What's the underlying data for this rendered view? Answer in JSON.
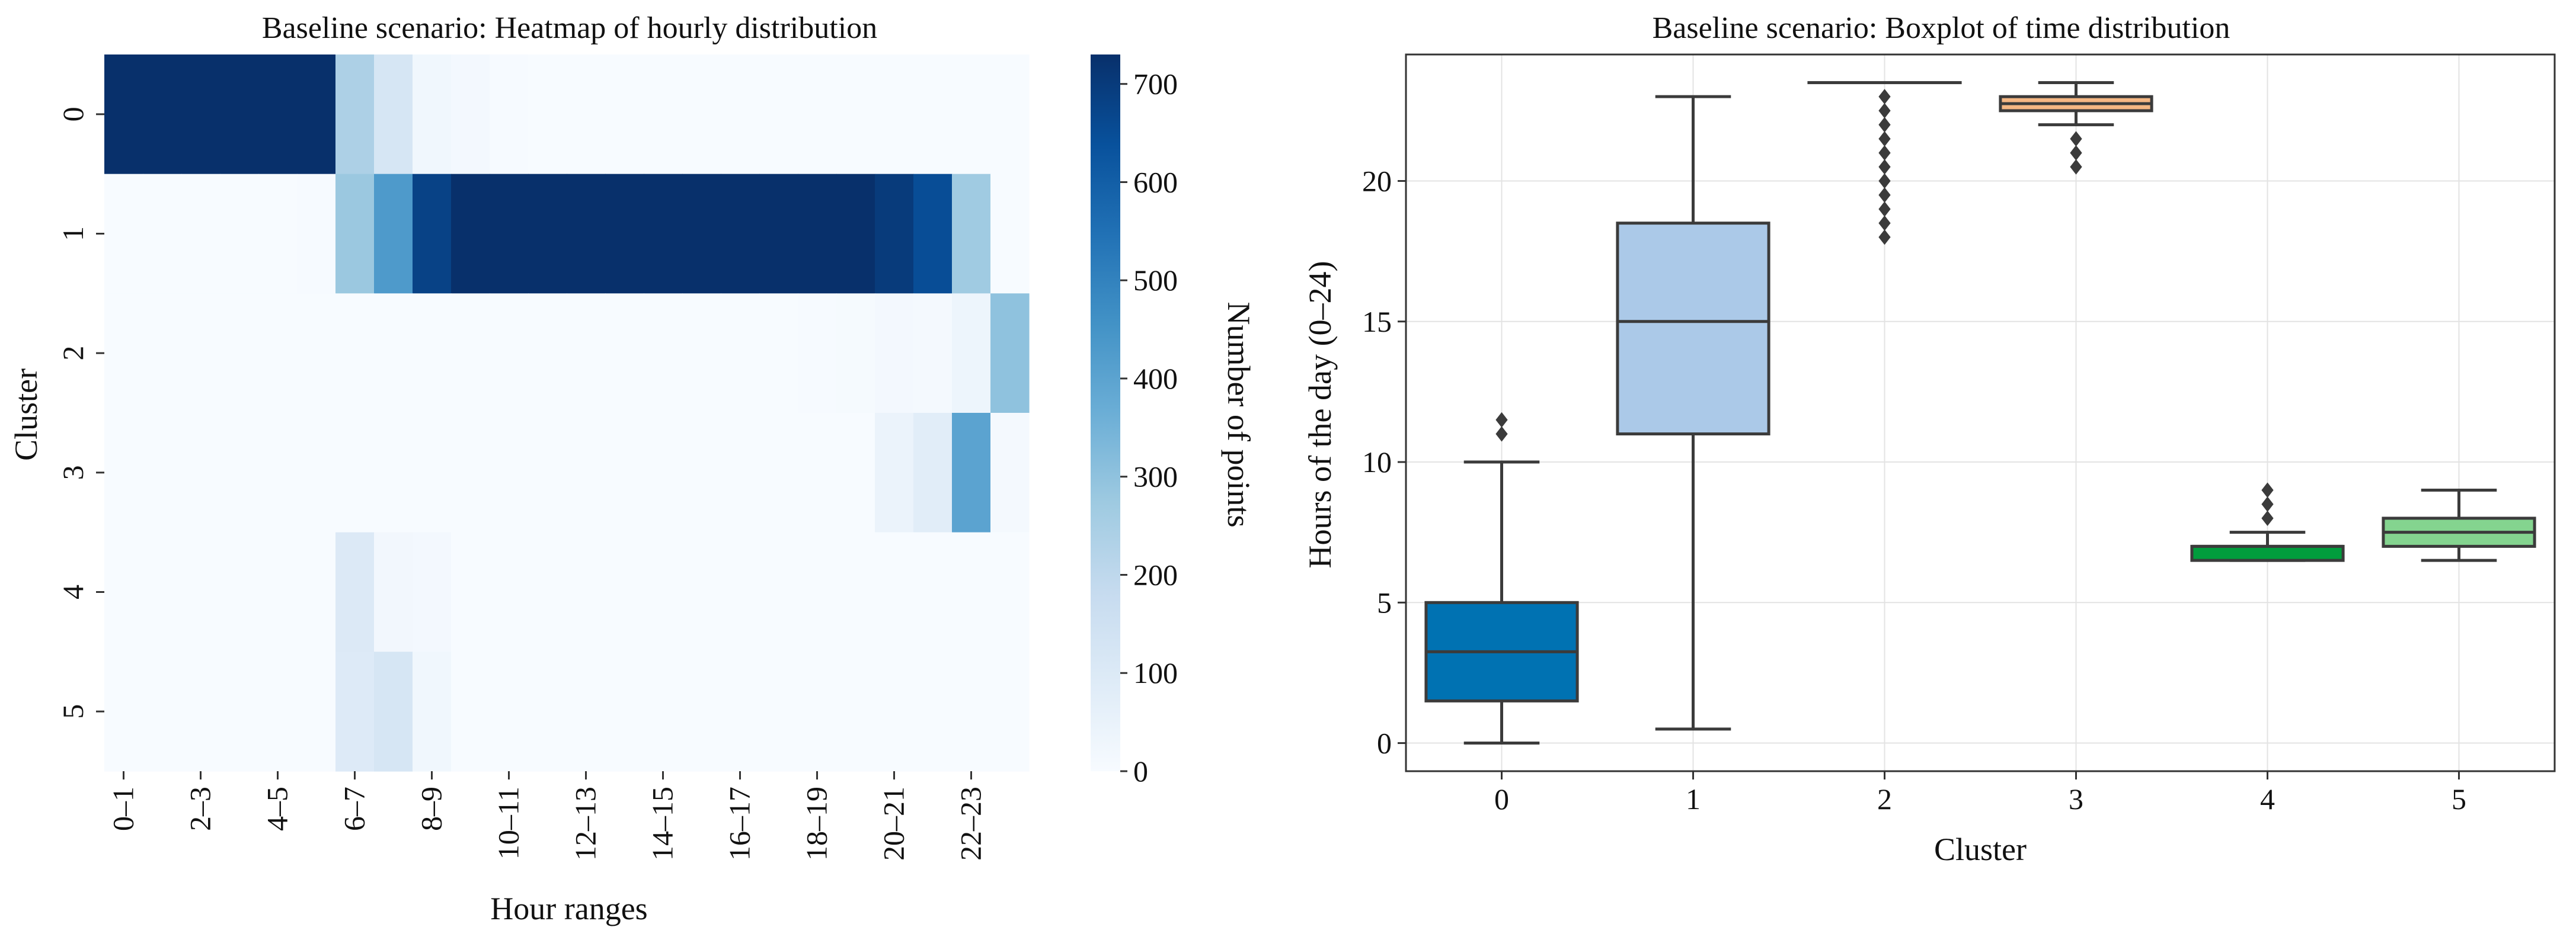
{
  "chart_data": [
    {
      "type": "heatmap",
      "title": "Baseline scenario: Heatmap of hourly distribution",
      "xlabel": "Hour ranges",
      "ylabel": "Cluster",
      "colorbar_label": "Number of points",
      "colorbar_range": [
        0,
        730
      ],
      "colorbar_ticks": [
        0,
        100,
        200,
        300,
        400,
        500,
        600,
        700
      ],
      "rows": [
        "0",
        "1",
        "2",
        "3",
        "4",
        "5"
      ],
      "columns": [
        "0–1",
        "1–2",
        "2–3",
        "3–4",
        "4–5",
        "5–6",
        "6–7",
        "7–8",
        "8–9",
        "9–10",
        "10–11",
        "11–12",
        "12–13",
        "13–14",
        "14–15",
        "15–16",
        "16–17",
        "17–18",
        "18–19",
        "19–20",
        "20–21",
        "21–22",
        "22–23",
        "23–24"
      ],
      "tick_labels": [
        "0–1",
        "2–3",
        "4–5",
        "6–7",
        "8–9",
        "10–11",
        "12–13",
        "14–15",
        "16–17",
        "18–19",
        "20–21",
        "22–23"
      ],
      "values": [
        [
          730,
          730,
          730,
          730,
          730,
          730,
          240,
          120,
          25,
          15,
          5,
          0,
          0,
          0,
          0,
          0,
          0,
          0,
          0,
          0,
          0,
          0,
          0,
          0
        ],
        [
          0,
          0,
          0,
          0,
          0,
          5,
          280,
          430,
          680,
          730,
          730,
          730,
          730,
          730,
          730,
          730,
          730,
          730,
          730,
          730,
          700,
          650,
          270,
          0
        ],
        [
          0,
          0,
          0,
          0,
          0,
          0,
          0,
          0,
          0,
          0,
          0,
          0,
          0,
          0,
          0,
          0,
          0,
          0,
          3,
          8,
          15,
          10,
          35,
          300
        ],
        [
          0,
          0,
          0,
          0,
          0,
          0,
          0,
          0,
          0,
          0,
          0,
          0,
          0,
          0,
          0,
          0,
          0,
          0,
          0,
          0,
          45,
          80,
          400,
          12
        ],
        [
          0,
          0,
          0,
          0,
          0,
          0,
          100,
          20,
          15,
          0,
          0,
          0,
          0,
          0,
          0,
          0,
          0,
          0,
          0,
          0,
          0,
          0,
          0,
          0
        ],
        [
          0,
          0,
          0,
          0,
          0,
          0,
          95,
          120,
          25,
          0,
          0,
          0,
          0,
          0,
          0,
          0,
          0,
          0,
          0,
          0,
          0,
          0,
          0,
          0
        ]
      ]
    },
    {
      "type": "boxplot",
      "title": "Baseline scenario: Boxplot of time distribution",
      "xlabel": "Cluster",
      "ylabel": "Hours of the day (0–24)",
      "ylim": [
        -1,
        24.5
      ],
      "yticks": [
        0,
        5,
        10,
        15,
        20
      ],
      "grid": true,
      "categories": [
        "0",
        "1",
        "2",
        "3",
        "4",
        "5"
      ],
      "boxes": [
        {
          "category": "0",
          "whisker_low": 0,
          "q1": 1.5,
          "median": 3.25,
          "q3": 5,
          "whisker_high": 10,
          "outliers": [
            11,
            11.5
          ],
          "color": "#0072b2"
        },
        {
          "category": "1",
          "whisker_low": 0.5,
          "q1": 11,
          "median": 15,
          "q3": 18.5,
          "whisker_high": 23,
          "outliers": [],
          "color": "#abc9e8"
        },
        {
          "category": "2",
          "whisker_low": 23.5,
          "q1": 23.5,
          "median": 23.5,
          "q3": 23.5,
          "whisker_high": 23.5,
          "outliers": [
            18,
            18.5,
            19,
            19.5,
            20,
            20.5,
            21,
            21.5,
            22,
            22.5,
            23
          ],
          "color": "#abc9e8"
        },
        {
          "category": "3",
          "whisker_low": 22,
          "q1": 22.5,
          "median": 22.75,
          "q3": 23,
          "whisker_high": 23.5,
          "outliers": [
            20.5,
            21,
            21.5
          ],
          "color": "#f5b783"
        },
        {
          "category": "4",
          "whisker_low": 6.5,
          "q1": 6.5,
          "median": 7,
          "q3": 7,
          "whisker_high": 7.5,
          "outliers": [
            8,
            8.5,
            9
          ],
          "color": "#019d3d"
        },
        {
          "category": "5",
          "whisker_low": 6.5,
          "q1": 7,
          "median": 7.5,
          "q3": 8,
          "whisker_high": 9,
          "outliers": [],
          "color": "#84d48f"
        }
      ]
    }
  ]
}
